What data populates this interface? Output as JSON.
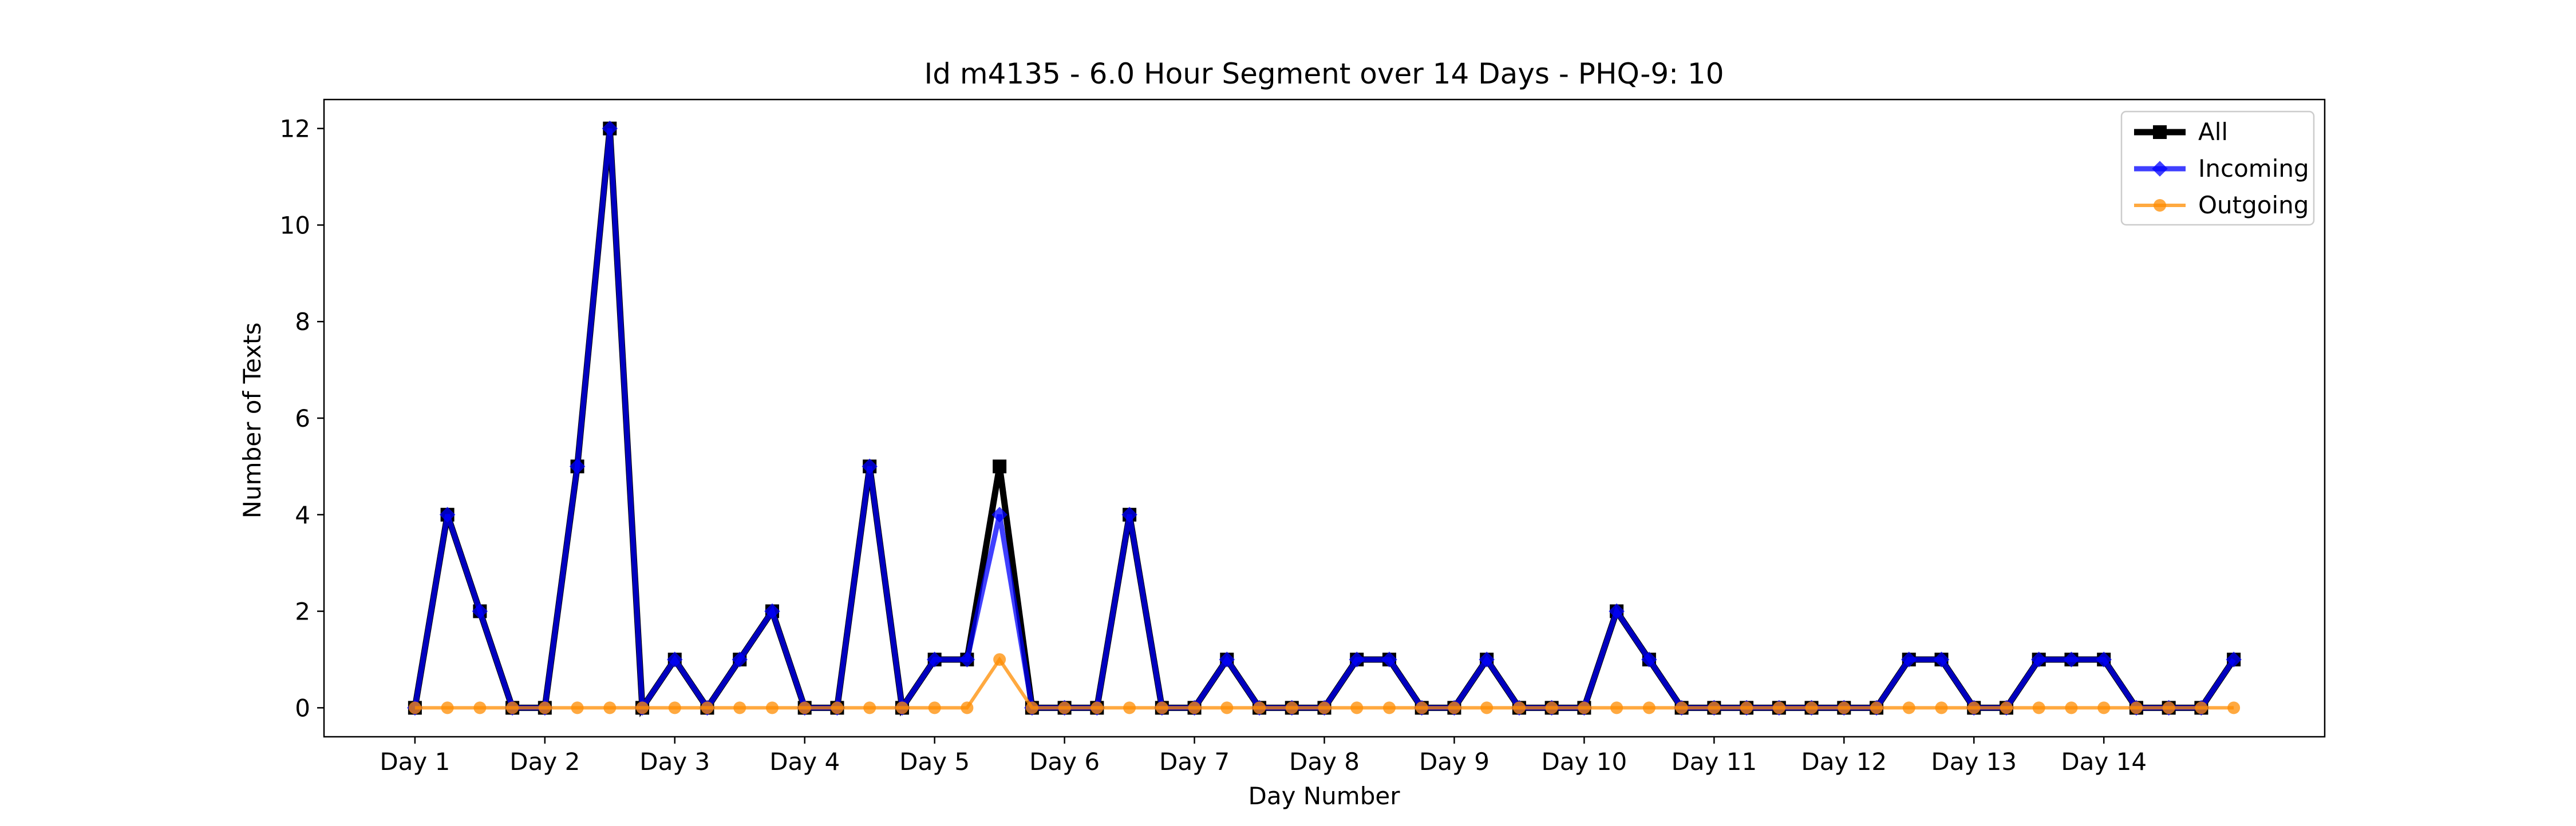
{
  "chart_data": {
    "type": "line",
    "title": "Id m4135 - 6.0 Hour Segment over 14 Days - PHQ-9: 10",
    "xlabel": "Day Number",
    "ylabel": "Number of Texts",
    "x_tick_labels": [
      "Day 1",
      "Day 2",
      "Day 3",
      "Day 4",
      "Day 5",
      "Day 6",
      "Day 7",
      "Day 8",
      "Day 9",
      "Day 10",
      "Day 11",
      "Day 12",
      "Day 13",
      "Day 14"
    ],
    "y_ticks": [
      0,
      2,
      4,
      6,
      8,
      10,
      12
    ],
    "ylim": [
      -0.6,
      12.6
    ],
    "segments_per_day": 4,
    "grid": false,
    "legend_position": "top-right",
    "series": [
      {
        "name": "All",
        "color": "#000000",
        "marker": "square",
        "values": [
          0,
          4,
          2,
          0,
          0,
          5,
          12,
          0,
          1,
          0,
          1,
          2,
          0,
          0,
          5,
          0,
          1,
          1,
          5,
          0,
          0,
          0,
          4,
          0,
          0,
          1,
          0,
          0,
          0,
          1,
          1,
          0,
          0,
          1,
          0,
          0,
          0,
          2,
          1,
          0,
          0,
          0,
          0,
          0,
          0,
          0,
          1,
          1,
          0,
          0,
          1,
          1,
          1,
          0,
          0,
          0,
          1
        ]
      },
      {
        "name": "Incoming",
        "color": "#0000ff",
        "marker": "diamond",
        "values": [
          0,
          4,
          2,
          0,
          0,
          5,
          12,
          0,
          1,
          0,
          1,
          2,
          0,
          0,
          5,
          0,
          1,
          1,
          4,
          0,
          0,
          0,
          4,
          0,
          0,
          1,
          0,
          0,
          0,
          1,
          1,
          0,
          0,
          1,
          0,
          0,
          0,
          2,
          1,
          0,
          0,
          0,
          0,
          0,
          0,
          0,
          1,
          1,
          0,
          0,
          1,
          1,
          1,
          0,
          0,
          0,
          1
        ]
      },
      {
        "name": "Outgoing",
        "color": "#ff8c00",
        "marker": "circle",
        "values": [
          0,
          0,
          0,
          0,
          0,
          0,
          0,
          0,
          0,
          0,
          0,
          0,
          0,
          0,
          0,
          0,
          0,
          0,
          1,
          0,
          0,
          0,
          0,
          0,
          0,
          0,
          0,
          0,
          0,
          0,
          0,
          0,
          0,
          0,
          0,
          0,
          0,
          0,
          0,
          0,
          0,
          0,
          0,
          0,
          0,
          0,
          0,
          0,
          0,
          0,
          0,
          0,
          0,
          0,
          0,
          0,
          0
        ]
      }
    ]
  }
}
